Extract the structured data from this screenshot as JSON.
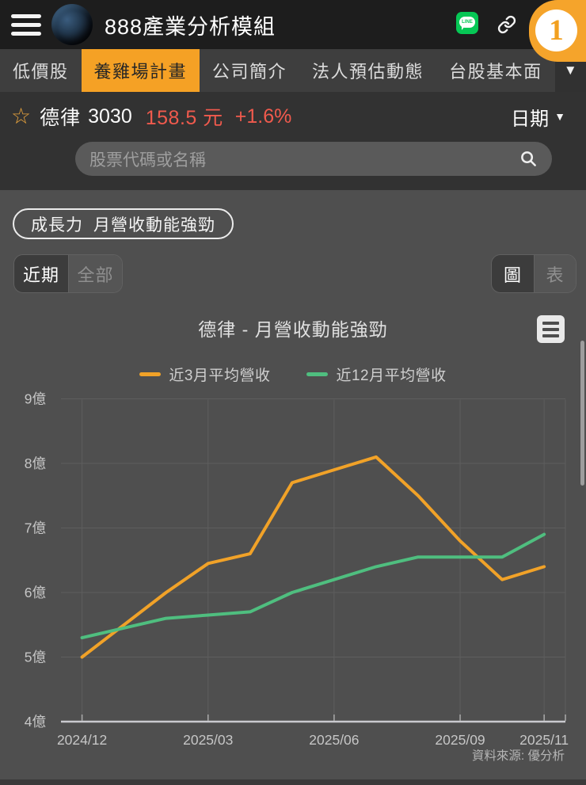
{
  "app_bar": {
    "title": "888產業分析模組",
    "line_label": "LINE",
    "badge_count": "1"
  },
  "tabs": {
    "items": [
      {
        "label": "低價股"
      },
      {
        "label": "養雞場計畫"
      },
      {
        "label": "公司簡介"
      },
      {
        "label": "法人預估動態"
      },
      {
        "label": "台股基本面"
      }
    ],
    "expand_glyph": "▼"
  },
  "stock": {
    "star_glyph": "☆",
    "name": "德律",
    "code": "3030",
    "price": "158.5 元",
    "change": "+1.6%",
    "date_label": "日期",
    "chevron_glyph": "▼"
  },
  "search": {
    "placeholder": "股票代碼或名稱"
  },
  "factor_badge": {
    "factor": "成長力",
    "signal": "月營收動能強勁"
  },
  "range_toggle": {
    "recent": "近期",
    "all": "全部"
  },
  "view_toggle": {
    "chart": "圖",
    "table": "表"
  },
  "colors": {
    "accent_orange": "#F5A125",
    "price_red": "#F05A4D",
    "line_green_brand": "#06C755"
  },
  "chart_data": {
    "type": "line",
    "title": "德律 - 月營收動能強勁",
    "source": "資料來源: 優分析",
    "unit": "億",
    "x": [
      "2024/12",
      "2025/01",
      "2025/02",
      "2025/03",
      "2025/04",
      "2025/05",
      "2025/06",
      "2025/07",
      "2025/08",
      "2025/09",
      "2025/10",
      "2025/11"
    ],
    "xtick_show": [
      0,
      3,
      6,
      9,
      11
    ],
    "series": [
      {
        "name": "近3月平均營收",
        "color": "#F1A228",
        "values": [
          5.0,
          5.5,
          6.0,
          6.45,
          6.6,
          7.7,
          7.9,
          8.1,
          7.5,
          6.8,
          6.2,
          6.4
        ]
      },
      {
        "name": "近12月平均營收",
        "color": "#4FBE7F",
        "values": [
          5.3,
          5.45,
          5.6,
          5.65,
          5.7,
          6.0,
          6.2,
          6.4,
          6.55,
          6.55,
          6.55,
          6.9
        ]
      }
    ],
    "ylim": [
      4,
      9
    ],
    "yticks": [
      4,
      5,
      6,
      7,
      8,
      9
    ],
    "grid": true,
    "legend_position": "top"
  }
}
